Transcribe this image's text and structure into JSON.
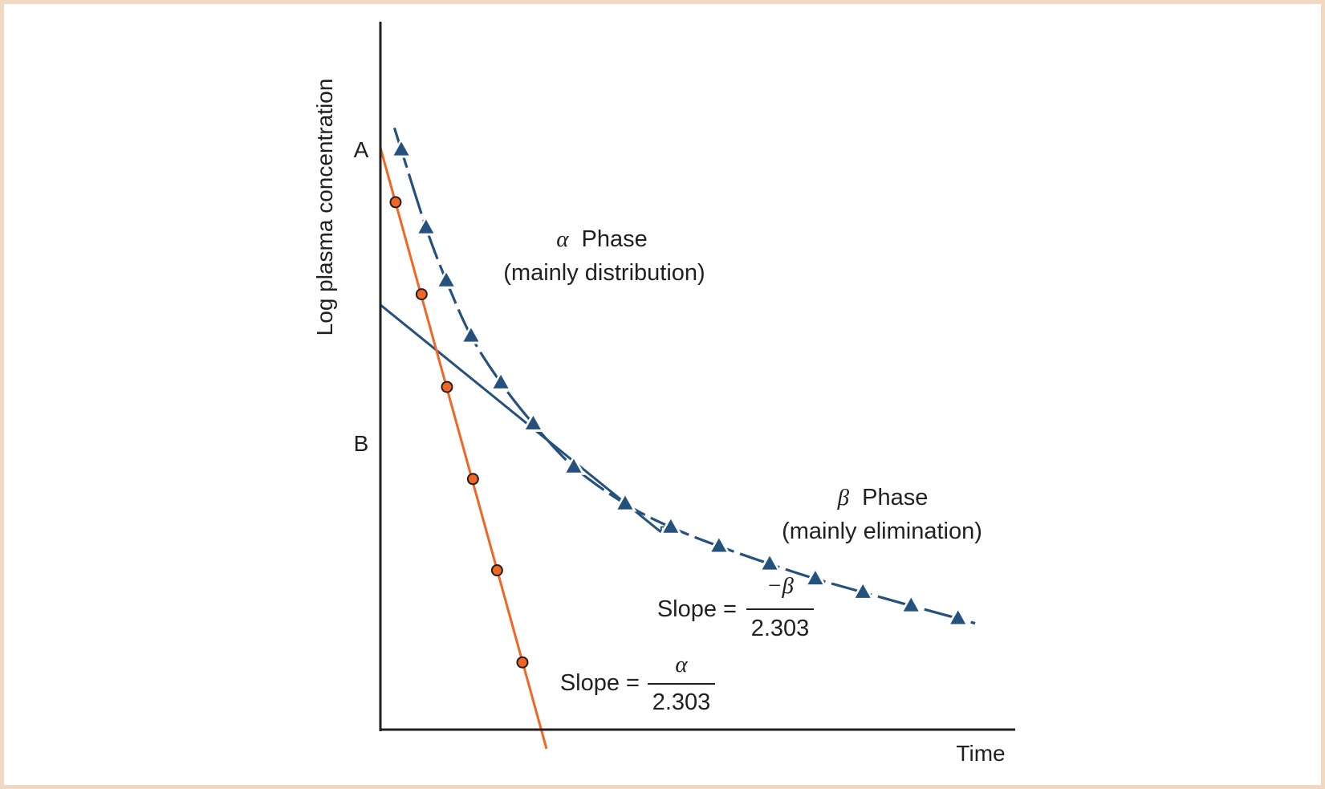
{
  "figure": {
    "y_axis_label": "Log plasma concentration",
    "x_axis_label": "Time",
    "intercept_a_label": "A",
    "intercept_b_label": "B",
    "alpha_phase": {
      "symbol": "α",
      "title": "Phase",
      "subtitle": "(mainly distribution)"
    },
    "beta_phase": {
      "symbol": "β",
      "title": "Phase",
      "subtitle": "(mainly elimination)"
    },
    "beta_slope": {
      "prefix": "Slope =",
      "numerator": "−β",
      "denominator": "2.303"
    },
    "alpha_slope": {
      "prefix": "Slope =",
      "numerator": "α",
      "denominator": "2.303"
    }
  },
  "colors": {
    "axis": "#231f20",
    "plasma_curve": "#24517e",
    "alpha_line": "#f26522",
    "circle_fill": "#f26522",
    "circle_stroke": "#231f20",
    "border": "#f1d8c2"
  },
  "chart_data": {
    "type": "line",
    "title": "",
    "xlabel": "Time",
    "ylabel": "Log plasma concentration",
    "xlim": [
      0,
      10
    ],
    "ylim": [
      0,
      10
    ],
    "grid": false,
    "ticks": "none (schematic axes, arbitrary units)",
    "series": [
      {
        "name": "Observed plasma concentration (biexponential curve)",
        "marker": "triangle",
        "style": "dashed",
        "x": [
          0.33,
          0.72,
          1.04,
          1.43,
          1.9,
          2.41,
          3.05,
          3.86,
          4.58,
          5.34,
          6.14,
          6.86,
          7.61,
          8.37,
          9.11
        ],
        "y": [
          8.19,
          7.09,
          6.34,
          5.56,
          4.9,
          4.32,
          3.71,
          3.19,
          2.86,
          2.59,
          2.34,
          2.13,
          1.94,
          1.75,
          1.57
        ]
      },
      {
        "name": "Residual line (α phase)",
        "marker": "circle",
        "style": "solid",
        "x": [
          0.24,
          0.65,
          1.05,
          1.46,
          1.84,
          2.24
        ],
        "y": [
          7.45,
          6.15,
          4.84,
          3.54,
          2.25,
          0.95
        ]
      },
      {
        "name": "Back-extrapolated β phase line",
        "marker": "none",
        "style": "solid",
        "x": [
          0,
          4.44
        ],
        "y": [
          6.0,
          2.78
        ]
      }
    ],
    "alpha_line_extent": {
      "x": [
        0,
        2.62
      ],
      "y": [
        8.22,
        -0.27
      ]
    },
    "curve_extent": {
      "x_start": 0.22,
      "y_start": 8.5,
      "x_end": 9.38,
      "y_end": 1.5
    },
    "intercepts": {
      "A": 8.22,
      "B": 6.0
    },
    "annotations": [
      "α Phase (mainly distribution)",
      "β Phase (mainly elimination)",
      "Slope = −β / 2.303",
      "Slope = α / 2.303"
    ]
  }
}
